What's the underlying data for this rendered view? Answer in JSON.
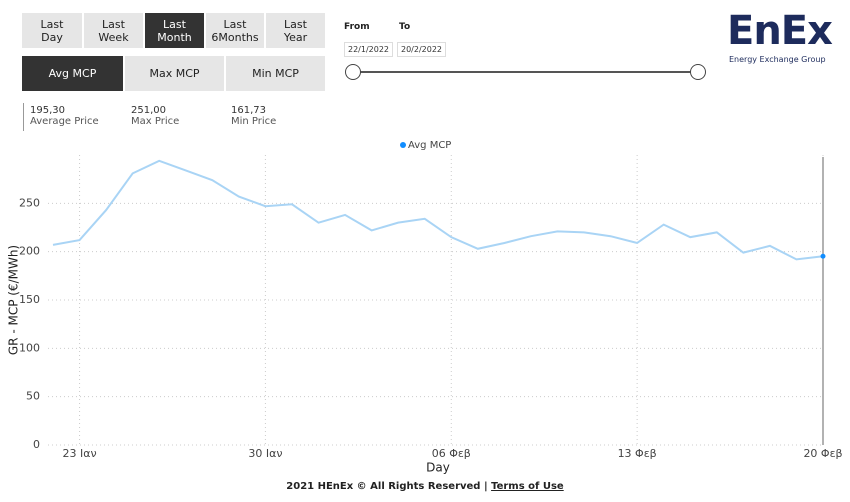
{
  "controls": {
    "periods": [
      "Last Day",
      "Last Week",
      "Last Month",
      "Last 6Months",
      "Last Year"
    ],
    "measures": [
      "Avg MCP",
      "Max MCP",
      "Min MCP"
    ],
    "from_label": "From",
    "to_label": "To",
    "from_date": "22/1/2022",
    "to_date": "20/2/2022"
  },
  "logo": {
    "title": "EnEx",
    "subtitle": "Energy Exchange Group"
  },
  "stats": [
    {
      "value": "195,30",
      "label": "Average Price"
    },
    {
      "value": "251,00",
      "label": "Max Price"
    },
    {
      "value": "161,73",
      "label": "Min Price"
    }
  ],
  "chart_data": {
    "type": "line",
    "x_label": "Day",
    "y_label": "GR - MCP (€/MWh)",
    "categories": [
      null,
      "23 Ιαν",
      null,
      null,
      null,
      null,
      null,
      null,
      "30 Ιαν",
      null,
      null,
      null,
      null,
      null,
      null,
      "06 Φεβ",
      null,
      null,
      null,
      null,
      null,
      null,
      "13 Φεβ",
      null,
      null,
      null,
      null,
      null,
      null,
      "20 Φεβ"
    ],
    "series": [
      {
        "name": "Avg MCP",
        "color": "#a9d4f5",
        "values": [
          207,
          212,
          243,
          281,
          294,
          284,
          274,
          257,
          247,
          249,
          230,
          238,
          222,
          230,
          234,
          215,
          203,
          209,
          216,
          221,
          220,
          216,
          209,
          228,
          215,
          220,
          199,
          206,
          192,
          195.3
        ]
      }
    ],
    "ylim": [
      0,
      300
    ],
    "yticks": [
      0,
      50,
      100,
      150,
      200,
      250
    ],
    "grid": true
  },
  "footer": {
    "text": "2021 HEnEx © All Rights Reserved | ",
    "link": "Terms of Use"
  }
}
